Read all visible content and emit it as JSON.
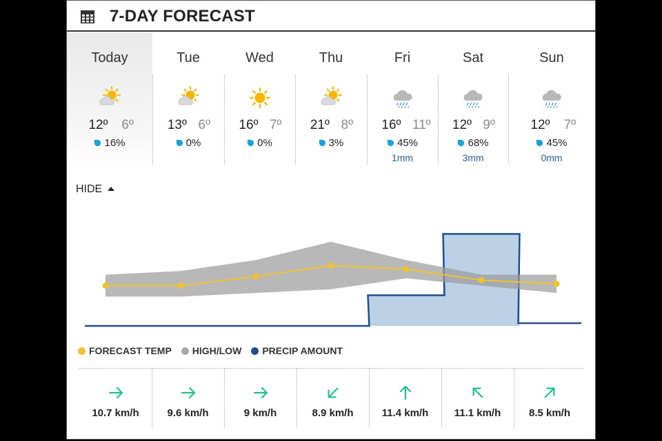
{
  "header": {
    "title": "7-DAY FORECAST",
    "icon": "calendar-icon"
  },
  "days": [
    {
      "name": "Today",
      "icon": "partly-sunny-icon",
      "high": "12º",
      "low": "6º",
      "pop": "16%",
      "amount": ""
    },
    {
      "name": "Tue",
      "icon": "partly-sunny-icon",
      "high": "13º",
      "low": "6º",
      "pop": "0%",
      "amount": ""
    },
    {
      "name": "Wed",
      "icon": "sunny-icon",
      "high": "16º",
      "low": "7º",
      "pop": "0%",
      "amount": ""
    },
    {
      "name": "Thu",
      "icon": "partly-sunny-icon",
      "high": "21º",
      "low": "8º",
      "pop": "3%",
      "amount": ""
    },
    {
      "name": "Fri",
      "icon": "rain-cloud-icon",
      "high": "16º",
      "low": "11º",
      "pop": "45%",
      "amount": "1mm"
    },
    {
      "name": "Sat",
      "icon": "rain-cloud-icon",
      "high": "12º",
      "low": "9º",
      "pop": "68%",
      "amount": "3mm"
    },
    {
      "name": "Sun",
      "icon": "rain-cloud-icon",
      "high": "12º",
      "low": "7º",
      "pop": "45%",
      "amount": "0mm"
    }
  ],
  "toggle": {
    "label": "HIDE"
  },
  "chart_data": {
    "type": "line",
    "categories": [
      "Today",
      "Tue",
      "Wed",
      "Thu",
      "Fri",
      "Sat",
      "Sun"
    ],
    "series": [
      {
        "name": "FORECAST TEMP",
        "values": [
          9,
          9,
          11.5,
          14.5,
          13.5,
          10.5,
          9.5
        ]
      },
      {
        "name": "HIGH/LOW",
        "high": [
          12,
          13,
          16,
          21,
          16,
          12,
          12
        ],
        "low": [
          6,
          6,
          7,
          8,
          11,
          9,
          7
        ]
      },
      {
        "name": "PRECIP AMOUNT",
        "values": [
          0,
          0,
          0,
          0,
          1,
          3,
          0
        ]
      }
    ],
    "colors": {
      "temp": "#f2c12e",
      "range": "#9a9a9a",
      "precip_line": "#1f4e8c",
      "precip_fill": "#bcd0e6"
    }
  },
  "legend": [
    {
      "label": "FORECAST TEMP",
      "color": "#f2c12e"
    },
    {
      "label": "HIGH/LOW",
      "color": "#a8a8a8"
    },
    {
      "label": "PRECIP AMOUNT",
      "color": "#1f4e8c"
    }
  ],
  "wind": [
    {
      "speed": "10.7 km/h",
      "direction": "right-arrow-icon"
    },
    {
      "speed": "9.6 km/h",
      "direction": "right-arrow-icon"
    },
    {
      "speed": "9 km/h",
      "direction": "right-arrow-icon"
    },
    {
      "speed": "8.9 km/h",
      "direction": "down-left-arrow-icon"
    },
    {
      "speed": "11.4 km/h",
      "direction": "up-arrow-icon"
    },
    {
      "speed": "11.1 km/h",
      "direction": "up-left-arrow-icon"
    },
    {
      "speed": "8.5 km/h",
      "direction": "up-right-arrow-icon"
    }
  ],
  "accent": {
    "wind_arrow": "#1fbf8f",
    "drop": "#1aa3d9"
  }
}
